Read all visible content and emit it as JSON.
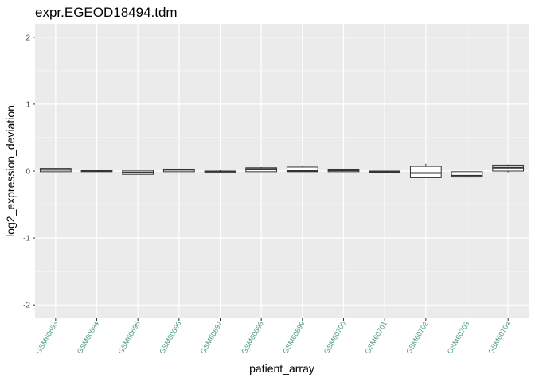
{
  "chart_data": {
    "type": "box",
    "title": "expr.EGEOD18494.tdm",
    "xlabel": "patient_array",
    "ylabel": "log2_expression_deviation",
    "ylim": [
      -2.2,
      2.2
    ],
    "yticks": [
      -2,
      -1,
      0,
      1,
      2
    ],
    "ytick_labels": [
      "-2",
      "-1",
      "0",
      "1",
      "2"
    ],
    "grid": true,
    "tick_label_color": "#4a9a7e",
    "panel_color": "#ebebeb",
    "categories": [
      "GSM60693",
      "GSM60694",
      "GSM60695",
      "GSM60696",
      "GSM60697",
      "GSM60698",
      "GSM60699",
      "GSM60700",
      "GSM60701",
      "GSM60702",
      "GSM60703",
      "GSM60704"
    ],
    "boxes": [
      {
        "lower": -0.01,
        "q1": -0.01,
        "median": 0.02,
        "q3": 0.04,
        "upper": 0.04
      },
      {
        "lower": -0.01,
        "q1": -0.01,
        "median": 0.0,
        "q3": 0.01,
        "upper": 0.01
      },
      {
        "lower": -0.05,
        "q1": -0.05,
        "median": -0.02,
        "q3": 0.01,
        "upper": 0.01
      },
      {
        "lower": -0.01,
        "q1": -0.01,
        "median": 0.02,
        "q3": 0.03,
        "upper": 0.03
      },
      {
        "lower": -0.03,
        "q1": -0.03,
        "median": -0.01,
        "q3": 0.0,
        "upper": 0.02
      },
      {
        "lower": -0.01,
        "q1": -0.01,
        "median": 0.03,
        "q3": 0.05,
        "upper": 0.06
      },
      {
        "lower": -0.01,
        "q1": -0.01,
        "median": 0.0,
        "q3": 0.06,
        "upper": 0.08
      },
      {
        "lower": -0.01,
        "q1": -0.01,
        "median": 0.01,
        "q3": 0.03,
        "upper": 0.03
      },
      {
        "lower": -0.02,
        "q1": -0.02,
        "median": -0.01,
        "q3": 0.0,
        "upper": 0.0
      },
      {
        "lower": -0.1,
        "q1": -0.1,
        "median": -0.03,
        "q3": 0.07,
        "upper": 0.11
      },
      {
        "lower": -0.1,
        "q1": -0.09,
        "median": -0.07,
        "q3": -0.01,
        "upper": -0.01
      },
      {
        "lower": -0.02,
        "q1": 0.0,
        "median": 0.05,
        "q3": 0.09,
        "upper": 0.1
      }
    ]
  }
}
